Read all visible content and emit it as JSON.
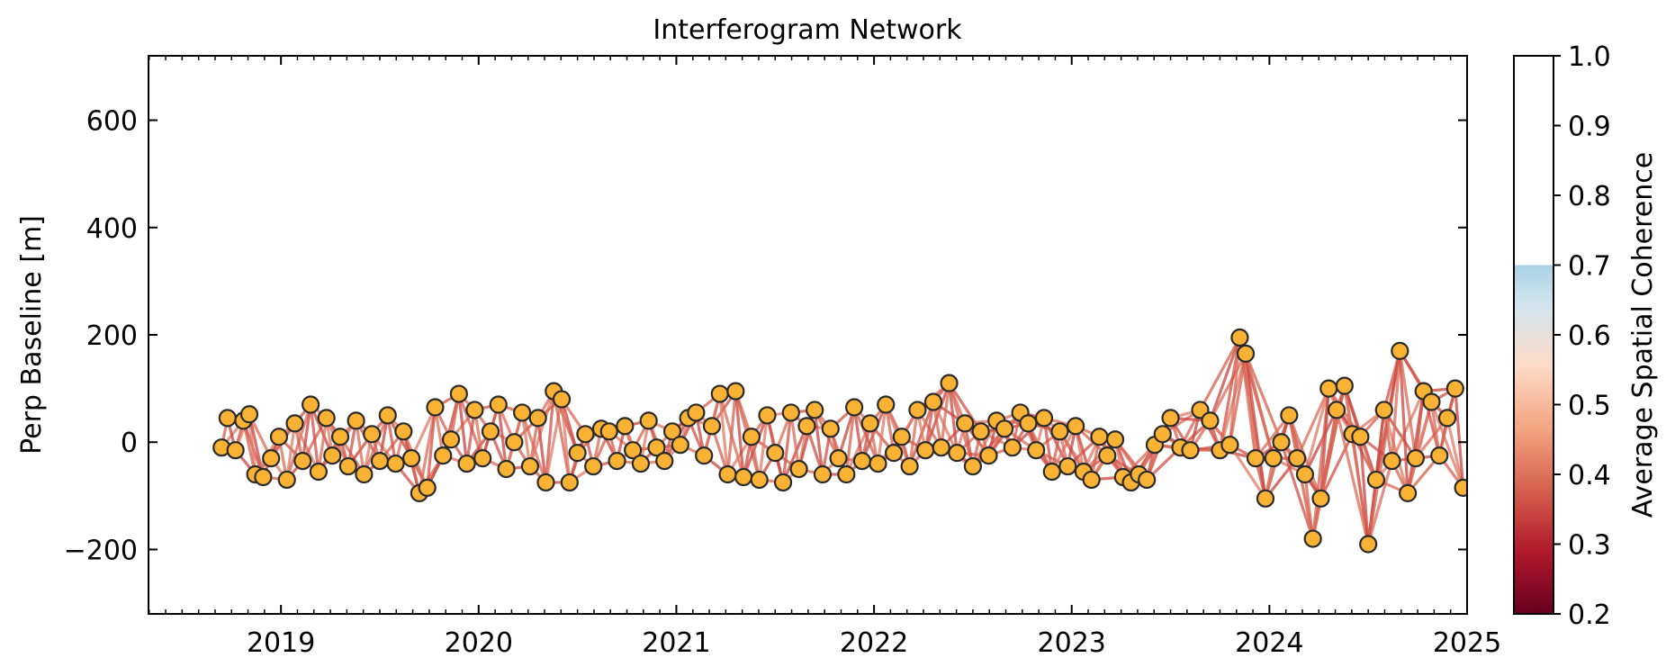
{
  "chart_data": {
    "type": "scatter",
    "title": "Interferogram Network",
    "xlabel": "",
    "ylabel": "Perp Baseline [m]",
    "xlim": [
      2018.33,
      2025.0
    ],
    "ylim": [
      -320,
      720
    ],
    "x_ticks": [
      2019,
      2020,
      2021,
      2022,
      2023,
      2024,
      2025
    ],
    "x_tick_labels": [
      "2019",
      "2020",
      "2021",
      "2022",
      "2023",
      "2024",
      "2025"
    ],
    "y_ticks": [
      -200,
      0,
      200,
      400,
      600
    ],
    "y_tick_labels": [
      "−200",
      "0",
      "200",
      "400",
      "600"
    ],
    "colorbar": {
      "label": "Average Spatial Coherence",
      "range": [
        0.2,
        1.0
      ],
      "ticks": [
        "0.2",
        "0.3",
        "0.4",
        "0.5",
        "0.6",
        "0.7",
        "0.8",
        "0.9",
        "1.0"
      ],
      "cmap": "RdBu",
      "cmap_stops": [
        "#67001f",
        "#b2182b",
        "#d6604d",
        "#f4a582",
        "#fddbc7",
        "#d1e5f0",
        "#92c5de",
        "#4393c3",
        "#2166ac",
        "#053061"
      ],
      "masked_above": 0.7
    },
    "grid": false,
    "series": [
      {
        "role": "acquisitions",
        "marker_color": "#f9b233",
        "edge_color": "#2b2b2b",
        "points": [
          [
            2018.7,
            -10
          ],
          [
            2018.73,
            45
          ],
          [
            2018.77,
            -15
          ],
          [
            2018.81,
            40
          ],
          [
            2018.84,
            52
          ],
          [
            2018.87,
            -60
          ],
          [
            2018.91,
            -65
          ],
          [
            2018.95,
            -30
          ],
          [
            2018.99,
            10
          ],
          [
            2019.03,
            -70
          ],
          [
            2019.07,
            35
          ],
          [
            2019.11,
            -35
          ],
          [
            2019.15,
            70
          ],
          [
            2019.19,
            -55
          ],
          [
            2019.23,
            45
          ],
          [
            2019.26,
            -25
          ],
          [
            2019.3,
            10
          ],
          [
            2019.34,
            -45
          ],
          [
            2019.38,
            40
          ],
          [
            2019.42,
            -60
          ],
          [
            2019.46,
            15
          ],
          [
            2019.5,
            -35
          ],
          [
            2019.54,
            50
          ],
          [
            2019.58,
            -40
          ],
          [
            2019.62,
            20
          ],
          [
            2019.66,
            -30
          ],
          [
            2019.7,
            -95
          ],
          [
            2019.74,
            -85
          ],
          [
            2019.78,
            65
          ],
          [
            2019.82,
            -25
          ],
          [
            2019.86,
            5
          ],
          [
            2019.9,
            90
          ],
          [
            2019.94,
            -40
          ],
          [
            2019.98,
            60
          ],
          [
            2020.02,
            -30
          ],
          [
            2020.06,
            20
          ],
          [
            2020.1,
            70
          ],
          [
            2020.14,
            -50
          ],
          [
            2020.18,
            0
          ],
          [
            2020.22,
            55
          ],
          [
            2020.26,
            -45
          ],
          [
            2020.3,
            45
          ],
          [
            2020.34,
            -75
          ],
          [
            2020.38,
            95
          ],
          [
            2020.42,
            80
          ],
          [
            2020.46,
            -75
          ],
          [
            2020.5,
            -20
          ],
          [
            2020.54,
            15
          ],
          [
            2020.58,
            -45
          ],
          [
            2020.62,
            25
          ],
          [
            2020.66,
            20
          ],
          [
            2020.7,
            -35
          ],
          [
            2020.74,
            30
          ],
          [
            2020.78,
            -15
          ],
          [
            2020.82,
            -40
          ],
          [
            2020.86,
            40
          ],
          [
            2020.9,
            -10
          ],
          [
            2020.94,
            -35
          ],
          [
            2020.98,
            20
          ],
          [
            2021.02,
            -5
          ],
          [
            2021.06,
            45
          ],
          [
            2021.1,
            55
          ],
          [
            2021.14,
            -25
          ],
          [
            2021.18,
            30
          ],
          [
            2021.22,
            90
          ],
          [
            2021.26,
            -60
          ],
          [
            2021.3,
            95
          ],
          [
            2021.34,
            -65
          ],
          [
            2021.38,
            10
          ],
          [
            2021.42,
            -70
          ],
          [
            2021.46,
            50
          ],
          [
            2021.5,
            -20
          ],
          [
            2021.54,
            -75
          ],
          [
            2021.58,
            55
          ],
          [
            2021.62,
            -50
          ],
          [
            2021.66,
            30
          ],
          [
            2021.7,
            60
          ],
          [
            2021.74,
            -60
          ],
          [
            2021.78,
            25
          ],
          [
            2021.82,
            -30
          ],
          [
            2021.86,
            -60
          ],
          [
            2021.9,
            65
          ],
          [
            2021.94,
            -35
          ],
          [
            2021.98,
            35
          ],
          [
            2022.02,
            -40
          ],
          [
            2022.06,
            70
          ],
          [
            2022.1,
            -20
          ],
          [
            2022.14,
            10
          ],
          [
            2022.18,
            -45
          ],
          [
            2022.22,
            60
          ],
          [
            2022.26,
            -15
          ],
          [
            2022.3,
            75
          ],
          [
            2022.34,
            -10
          ],
          [
            2022.38,
            110
          ],
          [
            2022.42,
            -20
          ],
          [
            2022.46,
            35
          ],
          [
            2022.5,
            -45
          ],
          [
            2022.54,
            20
          ],
          [
            2022.58,
            -25
          ],
          [
            2022.62,
            40
          ],
          [
            2022.66,
            25
          ],
          [
            2022.7,
            -10
          ],
          [
            2022.74,
            55
          ],
          [
            2022.78,
            35
          ],
          [
            2022.82,
            -15
          ],
          [
            2022.86,
            45
          ],
          [
            2022.9,
            -55
          ],
          [
            2022.94,
            20
          ],
          [
            2022.98,
            -45
          ],
          [
            2023.02,
            30
          ],
          [
            2023.06,
            -55
          ],
          [
            2023.1,
            -70
          ],
          [
            2023.14,
            10
          ],
          [
            2023.18,
            -25
          ],
          [
            2023.22,
            5
          ],
          [
            2023.26,
            -65
          ],
          [
            2023.3,
            -75
          ],
          [
            2023.34,
            -60
          ],
          [
            2023.38,
            -70
          ],
          [
            2023.42,
            -5
          ],
          [
            2023.46,
            15
          ],
          [
            2023.5,
            45
          ],
          [
            2023.55,
            -10
          ],
          [
            2023.6,
            -15
          ],
          [
            2023.65,
            60
          ],
          [
            2023.7,
            40
          ],
          [
            2023.75,
            -15
          ],
          [
            2023.8,
            -5
          ],
          [
            2023.85,
            195
          ],
          [
            2023.88,
            165
          ],
          [
            2023.93,
            -30
          ],
          [
            2023.98,
            -105
          ],
          [
            2024.02,
            -30
          ],
          [
            2024.06,
            0
          ],
          [
            2024.1,
            50
          ],
          [
            2024.14,
            -30
          ],
          [
            2024.18,
            -60
          ],
          [
            2024.22,
            -180
          ],
          [
            2024.26,
            -105
          ],
          [
            2024.3,
            100
          ],
          [
            2024.34,
            60
          ],
          [
            2024.38,
            105
          ],
          [
            2024.42,
            15
          ],
          [
            2024.46,
            10
          ],
          [
            2024.5,
            -190
          ],
          [
            2024.54,
            -70
          ],
          [
            2024.58,
            60
          ],
          [
            2024.62,
            -35
          ],
          [
            2024.66,
            170
          ],
          [
            2024.7,
            -95
          ],
          [
            2024.74,
            -30
          ],
          [
            2024.78,
            95
          ],
          [
            2024.82,
            75
          ],
          [
            2024.86,
            -25
          ],
          [
            2024.9,
            45
          ],
          [
            2024.94,
            100
          ],
          [
            2024.98,
            -85
          ]
        ]
      }
    ]
  }
}
